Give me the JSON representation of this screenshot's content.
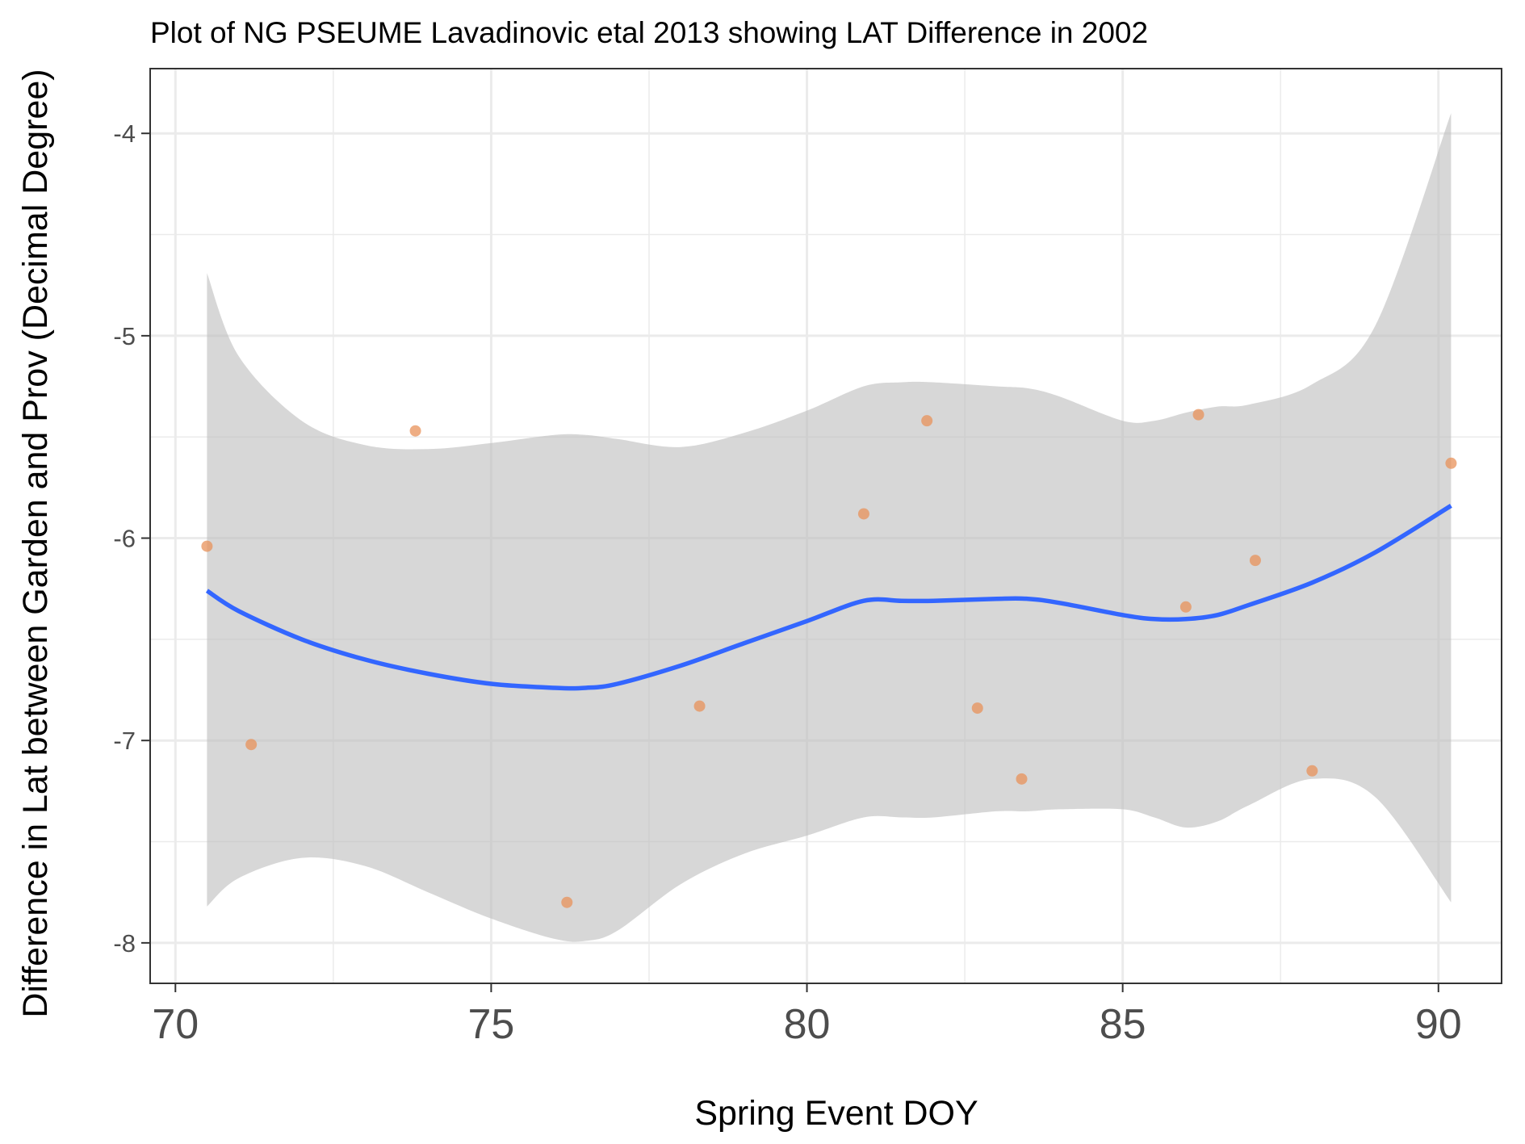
{
  "chart_data": {
    "type": "scatter",
    "title": "Plot of NG PSEUME Lavadinovic etal 2013 showing LAT Difference in 2002",
    "xlabel": "Spring Event DOY",
    "ylabel": "Difference in Lat between Garden and Prov (Decimal Degree)",
    "xlim": [
      69.6,
      91.0
    ],
    "ylim": [
      -8.2,
      -3.68
    ],
    "xticks": [
      70,
      75,
      80,
      85,
      90
    ],
    "xtick_labels": [
      "70",
      "75",
      "80",
      "85",
      "90"
    ],
    "yticks": [
      -8,
      -7,
      -6,
      -5,
      -4
    ],
    "ytick_labels": [
      "-8",
      "-7",
      "-6",
      "-5",
      "-4"
    ],
    "grid": true,
    "legend": "none",
    "colors": {
      "points": "#E8925A",
      "smooth_line": "#3366FF",
      "confidence_band": "#BEBEBE",
      "grid": "#EBEBEB"
    },
    "points": [
      {
        "x": 70.5,
        "y": -6.04
      },
      {
        "x": 71.2,
        "y": -7.02
      },
      {
        "x": 73.8,
        "y": -5.47
      },
      {
        "x": 76.2,
        "y": -7.8
      },
      {
        "x": 78.3,
        "y": -6.83
      },
      {
        "x": 80.9,
        "y": -5.88
      },
      {
        "x": 81.9,
        "y": -5.42
      },
      {
        "x": 82.7,
        "y": -6.84
      },
      {
        "x": 83.4,
        "y": -7.19
      },
      {
        "x": 86.0,
        "y": -6.34
      },
      {
        "x": 86.2,
        "y": -5.39
      },
      {
        "x": 87.1,
        "y": -6.11
      },
      {
        "x": 88.0,
        "y": -7.15
      },
      {
        "x": 90.2,
        "y": -5.63
      }
    ],
    "smooth": {
      "method": "loess",
      "x": [
        70.5,
        71.0,
        72.0,
        73.0,
        74.0,
        75.0,
        76.0,
        76.5,
        77.0,
        78.0,
        79.0,
        80.0,
        80.9,
        81.5,
        82.0,
        83.0,
        83.5,
        84.0,
        85.0,
        85.5,
        86.0,
        86.5,
        87.0,
        88.0,
        89.0,
        90.2
      ],
      "y": [
        -6.26,
        -6.36,
        -6.5,
        -6.6,
        -6.67,
        -6.72,
        -6.74,
        -6.74,
        -6.72,
        -6.63,
        -6.52,
        -6.41,
        -6.31,
        -6.31,
        -6.31,
        -6.3,
        -6.3,
        -6.32,
        -6.38,
        -6.4,
        -6.4,
        -6.38,
        -6.33,
        -6.22,
        -6.07,
        -5.84
      ],
      "upper": [
        -4.69,
        -5.1,
        -5.42,
        -5.54,
        -5.56,
        -5.53,
        -5.49,
        -5.49,
        -5.51,
        -5.55,
        -5.48,
        -5.37,
        -5.25,
        -5.23,
        -5.23,
        -5.25,
        -5.26,
        -5.3,
        -5.42,
        -5.42,
        -5.38,
        -5.35,
        -5.34,
        -5.24,
        -4.95,
        -3.9
      ],
      "lower": [
        -7.82,
        -7.68,
        -7.58,
        -7.62,
        -7.75,
        -7.88,
        -7.98,
        -7.99,
        -7.94,
        -7.71,
        -7.56,
        -7.47,
        -7.38,
        -7.38,
        -7.38,
        -7.35,
        -7.35,
        -7.34,
        -7.34,
        -7.38,
        -7.43,
        -7.4,
        -7.32,
        -7.19,
        -7.28,
        -7.8
      ]
    }
  }
}
